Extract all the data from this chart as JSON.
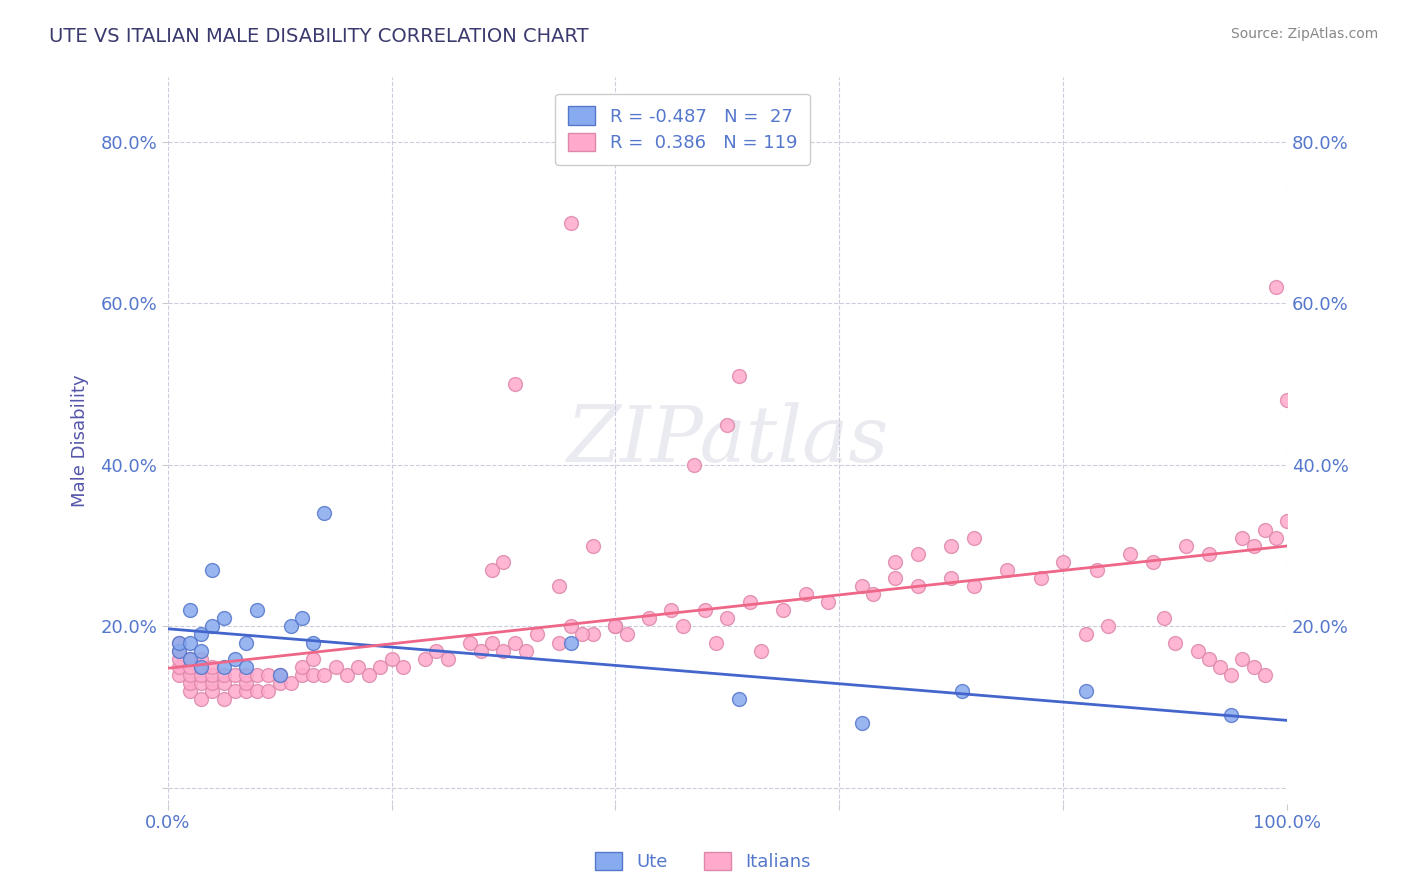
{
  "title": "UTE VS ITALIAN MALE DISABILITY CORRELATION CHART",
  "source_text": "Source: ZipAtlas.com",
  "ylabel": "Male Disability",
  "title_color": "#3a3a6e",
  "axis_label_color": "#5555aa",
  "tick_label_color": "#5577cc",
  "source_color": "#888888",
  "background_color": "#ffffff",
  "plot_bg_color": "#ffffff",
  "grid_color": "#ccccdd",
  "ute_color": "#88aaee",
  "ute_edge_color": "#5577cc",
  "italians_color": "#ffaacc",
  "italians_edge_color": "#dd88aa",
  "ute_line_color": "#4466cc",
  "italians_line_color": "#ee6688",
  "legend_R_ute": "-0.487",
  "legend_N_ute": "27",
  "legend_R_italians": "0.386",
  "legend_N_italians": "119",
  "xlim": [
    0.0,
    1.0
  ],
  "ylim": [
    -0.02,
    0.88
  ],
  "ute_x": [
    0.01,
    0.01,
    0.02,
    0.02,
    0.02,
    0.03,
    0.03,
    0.03,
    0.04,
    0.04,
    0.05,
    0.05,
    0.06,
    0.07,
    0.07,
    0.08,
    0.1,
    0.11,
    0.12,
    0.13,
    0.14,
    0.36,
    0.51,
    0.62,
    0.71,
    0.82,
    0.95
  ],
  "ute_y": [
    0.17,
    0.18,
    0.16,
    0.18,
    0.22,
    0.15,
    0.17,
    0.19,
    0.2,
    0.27,
    0.15,
    0.21,
    0.16,
    0.15,
    0.18,
    0.22,
    0.14,
    0.2,
    0.21,
    0.18,
    0.34,
    0.18,
    0.11,
    0.08,
    0.12,
    0.12,
    0.09
  ],
  "italians_x": [
    0.01,
    0.01,
    0.01,
    0.01,
    0.01,
    0.02,
    0.02,
    0.02,
    0.02,
    0.02,
    0.03,
    0.03,
    0.03,
    0.03,
    0.03,
    0.04,
    0.04,
    0.04,
    0.04,
    0.05,
    0.05,
    0.05,
    0.06,
    0.06,
    0.07,
    0.07,
    0.07,
    0.08,
    0.08,
    0.09,
    0.09,
    0.1,
    0.1,
    0.11,
    0.12,
    0.12,
    0.13,
    0.13,
    0.14,
    0.15,
    0.16,
    0.17,
    0.18,
    0.19,
    0.2,
    0.21,
    0.23,
    0.24,
    0.25,
    0.27,
    0.28,
    0.29,
    0.3,
    0.31,
    0.32,
    0.33,
    0.35,
    0.36,
    0.38,
    0.4,
    0.41,
    0.43,
    0.46,
    0.48,
    0.5,
    0.52,
    0.55,
    0.57,
    0.59,
    0.62,
    0.63,
    0.65,
    0.67,
    0.7,
    0.72,
    0.75,
    0.78,
    0.8,
    0.83,
    0.86,
    0.88,
    0.91,
    0.93,
    0.96,
    0.97,
    0.98,
    0.99,
    1.0,
    0.29,
    0.3,
    0.31,
    0.5,
    0.51,
    0.47,
    0.65,
    0.67,
    0.7,
    0.72,
    0.82,
    0.84,
    0.89,
    0.9,
    0.92,
    0.93,
    0.94,
    0.95,
    0.96,
    0.97,
    0.98,
    0.99,
    1.0,
    0.35,
    0.36,
    0.37,
    0.38,
    0.4,
    0.45,
    0.49,
    0.53
  ],
  "italians_y": [
    0.14,
    0.15,
    0.16,
    0.17,
    0.18,
    0.12,
    0.13,
    0.14,
    0.15,
    0.16,
    0.11,
    0.13,
    0.14,
    0.15,
    0.16,
    0.12,
    0.13,
    0.14,
    0.15,
    0.11,
    0.13,
    0.14,
    0.12,
    0.14,
    0.12,
    0.13,
    0.14,
    0.12,
    0.14,
    0.12,
    0.14,
    0.13,
    0.14,
    0.13,
    0.14,
    0.15,
    0.14,
    0.16,
    0.14,
    0.15,
    0.14,
    0.15,
    0.14,
    0.15,
    0.16,
    0.15,
    0.16,
    0.17,
    0.16,
    0.18,
    0.17,
    0.18,
    0.17,
    0.18,
    0.17,
    0.19,
    0.18,
    0.2,
    0.19,
    0.2,
    0.19,
    0.21,
    0.2,
    0.22,
    0.21,
    0.23,
    0.22,
    0.24,
    0.23,
    0.25,
    0.24,
    0.26,
    0.25,
    0.26,
    0.25,
    0.27,
    0.26,
    0.28,
    0.27,
    0.29,
    0.28,
    0.3,
    0.29,
    0.31,
    0.3,
    0.32,
    0.31,
    0.33,
    0.27,
    0.28,
    0.5,
    0.45,
    0.51,
    0.4,
    0.28,
    0.29,
    0.3,
    0.31,
    0.19,
    0.2,
    0.21,
    0.18,
    0.17,
    0.16,
    0.15,
    0.14,
    0.16,
    0.15,
    0.14,
    0.62,
    0.48,
    0.25,
    0.7,
    0.19,
    0.3,
    0.2,
    0.22,
    0.18,
    0.17
  ]
}
